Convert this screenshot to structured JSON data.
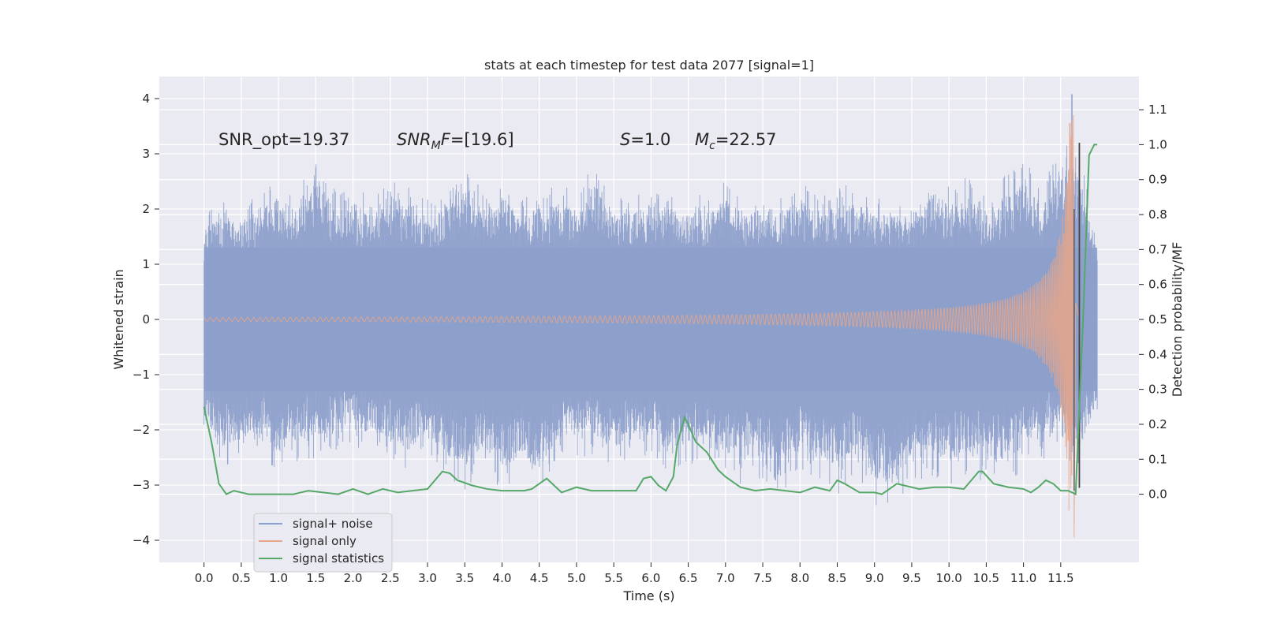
{
  "chart_data": {
    "type": "line",
    "title": "stats at each timestep for test data 2077 [signal=1]",
    "xlabel": "Time (s)",
    "ylabel": "Whitened strain",
    "y2label": "Detection probability/MF",
    "xlim": [
      -0.6,
      12.55
    ],
    "ylim": [
      -4.4,
      4.4
    ],
    "y2lim": [
      -0.195,
      1.195
    ],
    "xticks": [
      0.0,
      0.5,
      1.0,
      1.5,
      2.0,
      2.5,
      3.0,
      3.5,
      4.0,
      4.5,
      5.0,
      5.5,
      6.0,
      6.5,
      7.0,
      7.5,
      8.0,
      8.5,
      9.0,
      9.5,
      10.0,
      10.5,
      11.0,
      11.5
    ],
    "xtick_labels": [
      "0.0",
      "0.5",
      "1.0",
      "1.5",
      "2.0",
      "2.5",
      "3.0",
      "3.5",
      "4.0",
      "4.5",
      "5.0",
      "5.5",
      "6.0",
      "6.5",
      "7.0",
      "7.5",
      "8.0",
      "8.5",
      "9.0",
      "9.5",
      "10.0",
      "10.5",
      "11.0",
      "11.5"
    ],
    "yticks": [
      -4,
      -3,
      -2,
      -1,
      0,
      1,
      2,
      3,
      4
    ],
    "ytick_labels": [
      "−4",
      "−3",
      "−2",
      "−1",
      "0",
      "1",
      "2",
      "3",
      "4"
    ],
    "y2ticks": [
      0.0,
      0.1,
      0.2,
      0.3,
      0.4,
      0.5,
      0.6,
      0.7,
      0.8,
      0.9,
      1.0,
      1.1
    ],
    "y2tick_labels": [
      "0.0",
      "0.1",
      "0.2",
      "0.3",
      "0.4",
      "0.5",
      "0.6",
      "0.7",
      "0.8",
      "0.9",
      "1.0",
      "1.1"
    ],
    "grid": true,
    "legend_position": "lower-left",
    "annotations": {
      "snr_opt": "SNR_opt=19.37",
      "snr_mf": "=[19.6]",
      "s_value": "=1.0",
      "mc_value": "=22.57"
    },
    "series": [
      {
        "name": "signal+ noise",
        "color": "#8da0cb",
        "x_range": [
          0.0,
          11.99
        ],
        "envelope": {
          "x": [
            0.0,
            0.25,
            0.5,
            0.75,
            1.0,
            1.25,
            1.5,
            1.75,
            2.0,
            2.25,
            2.5,
            2.75,
            3.0,
            3.25,
            3.5,
            3.75,
            4.0,
            4.25,
            4.5,
            4.75,
            5.0,
            5.25,
            5.5,
            5.75,
            6.0,
            6.25,
            6.5,
            6.75,
            7.0,
            7.25,
            7.5,
            7.75,
            8.0,
            8.25,
            8.5,
            8.75,
            9.0,
            9.25,
            9.5,
            9.75,
            10.0,
            10.25,
            10.5,
            10.75,
            11.0,
            11.25,
            11.5,
            11.75,
            11.99
          ],
          "y_max": [
            1.9,
            2.2,
            2.1,
            2.4,
            2.6,
            2.3,
            3.05,
            2.4,
            2.5,
            2.2,
            2.6,
            2.5,
            2.2,
            2.4,
            2.9,
            2.3,
            2.6,
            2.2,
            2.4,
            2.5,
            2.3,
            2.9,
            2.3,
            2.4,
            2.5,
            2.3,
            2.4,
            2.2,
            2.6,
            2.2,
            2.4,
            2.3,
            2.6,
            2.2,
            2.4,
            2.5,
            2.2,
            2.3,
            2.1,
            2.8,
            2.5,
            2.6,
            2.3,
            2.6,
            2.9,
            2.5,
            3.3,
            3.2,
            1.5
          ],
          "y_min": [
            -2.1,
            -2.7,
            -2.6,
            -2.3,
            -2.9,
            -2.6,
            -2.5,
            -2.4,
            -2.3,
            -2.4,
            -2.6,
            -2.8,
            -2.4,
            -2.9,
            -3.1,
            -2.7,
            -3.2,
            -2.9,
            -3.3,
            -2.5,
            -2.6,
            -2.5,
            -2.8,
            -2.4,
            -2.5,
            -2.9,
            -2.6,
            -2.7,
            -2.9,
            -3.0,
            -2.9,
            -3.2,
            -2.8,
            -3.0,
            -3.2,
            -2.8,
            -3.45,
            -3.55,
            -2.9,
            -2.9,
            -3.0,
            -2.9,
            -3.0,
            -3.1,
            -2.7,
            -2.6,
            -2.4,
            -2.9,
            -1.7
          ]
        },
        "peak_x": 11.65,
        "peak_y": 4.08
      },
      {
        "name": "signal only",
        "color": "#e8a68a",
        "x_range": [
          0.0,
          11.75
        ],
        "peak_x": 11.66,
        "peak_y": 3.7,
        "min_y": -3.95
      },
      {
        "name": "signal statistics",
        "color": "#55a868",
        "axis": "right",
        "x": [
          0.0,
          0.1,
          0.2,
          0.3,
          0.4,
          0.6,
          0.8,
          1.0,
          1.2,
          1.4,
          1.6,
          1.8,
          2.0,
          2.2,
          2.4,
          2.6,
          2.8,
          3.0,
          3.1,
          3.2,
          3.3,
          3.4,
          3.6,
          3.8,
          4.0,
          4.2,
          4.3,
          4.4,
          4.6,
          4.7,
          4.8,
          5.0,
          5.2,
          5.4,
          5.6,
          5.8,
          5.9,
          6.0,
          6.1,
          6.2,
          6.3,
          6.35,
          6.45,
          6.5,
          6.6,
          6.75,
          6.9,
          7.0,
          7.2,
          7.4,
          7.6,
          7.8,
          8.0,
          8.2,
          8.4,
          8.5,
          8.6,
          8.8,
          9.0,
          9.1,
          9.2,
          9.3,
          9.4,
          9.6,
          9.8,
          10.0,
          10.2,
          10.3,
          10.4,
          10.45,
          10.6,
          10.8,
          11.0,
          11.1,
          11.2,
          11.3,
          11.4,
          11.5,
          11.6,
          11.7,
          11.8,
          11.88,
          11.95,
          11.99
        ],
        "values": [
          0.25,
          0.15,
          0.03,
          0.0,
          0.01,
          0.0,
          0.0,
          0.0,
          0.0,
          0.01,
          0.005,
          0.0,
          0.015,
          0.0,
          0.015,
          0.005,
          0.01,
          0.015,
          0.04,
          0.065,
          0.06,
          0.04,
          0.025,
          0.015,
          0.01,
          0.01,
          0.01,
          0.015,
          0.045,
          0.025,
          0.005,
          0.02,
          0.01,
          0.01,
          0.01,
          0.01,
          0.045,
          0.05,
          0.025,
          0.01,
          0.05,
          0.14,
          0.22,
          0.2,
          0.15,
          0.12,
          0.07,
          0.05,
          0.02,
          0.01,
          0.015,
          0.01,
          0.005,
          0.02,
          0.01,
          0.04,
          0.03,
          0.005,
          0.005,
          0.0,
          0.015,
          0.03,
          0.025,
          0.015,
          0.02,
          0.02,
          0.015,
          0.04,
          0.065,
          0.065,
          0.03,
          0.02,
          0.015,
          0.005,
          0.02,
          0.04,
          0.03,
          0.01,
          0.01,
          0.0,
          0.5,
          0.97,
          1.0,
          1.0
        ]
      }
    ]
  }
}
